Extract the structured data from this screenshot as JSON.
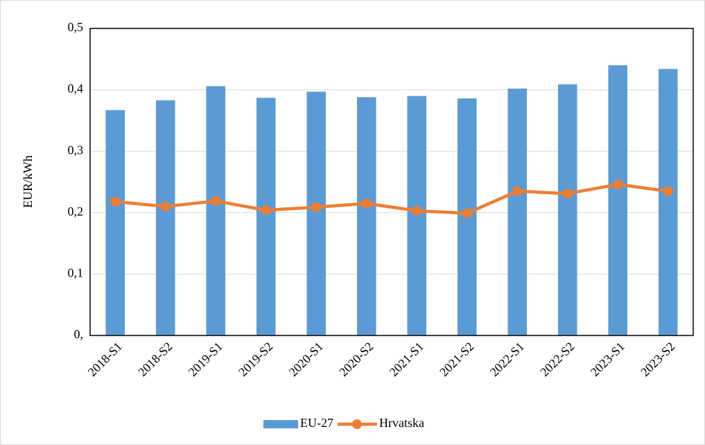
{
  "chart_data": {
    "type": "bar",
    "y_label": "EUR/kWh",
    "categories": [
      "2018-S1",
      "2018-S2",
      "2019-S1",
      "2019-S2",
      "2020-S1",
      "2020-S2",
      "2021-S1",
      "2021-S2",
      "2022-S1",
      "2022-S2",
      "2023-S1",
      "2023-S2"
    ],
    "series": [
      {
        "name": "EU-27",
        "type": "bar",
        "color": "#5b9bd5",
        "values": [
          0.367,
          0.383,
          0.406,
          0.387,
          0.397,
          0.388,
          0.39,
          0.386,
          0.402,
          0.409,
          0.44,
          0.434
        ]
      },
      {
        "name": "Hrvatska",
        "type": "line",
        "color": "#ed7d31",
        "values": [
          0.218,
          0.21,
          0.219,
          0.204,
          0.209,
          0.215,
          0.203,
          0.199,
          0.235,
          0.231,
          0.246,
          0.235
        ]
      }
    ],
    "ylim": [
      0,
      0.5
    ],
    "yticks": [
      {
        "value": 0,
        "label": "0,"
      },
      {
        "value": 0.1,
        "label": "0,1"
      },
      {
        "value": 0.2,
        "label": "0,2"
      },
      {
        "value": 0.3,
        "label": "0,3"
      },
      {
        "value": 0.4,
        "label": "0,4"
      },
      {
        "value": 0.5,
        "label": "0,5"
      }
    ],
    "grid": true,
    "legend": "bottom"
  }
}
